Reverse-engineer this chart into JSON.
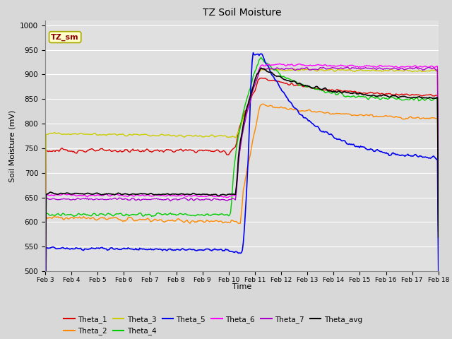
{
  "title": "TZ Soil Moisture",
  "xlabel": "Time",
  "ylabel": "Soil Moisture (mV)",
  "ylim": [
    500,
    1010
  ],
  "yticks": [
    500,
    550,
    600,
    650,
    700,
    750,
    800,
    850,
    900,
    950,
    1000
  ],
  "x_labels": [
    "Feb 3",
    "Feb 4",
    "Feb 5",
    "Feb 6",
    "Feb 7",
    "Feb 8",
    "Feb 9",
    "Feb 10",
    "Feb 11",
    "Feb 12",
    "Feb 13",
    "Feb 14",
    "Feb 15",
    "Feb 16",
    "Feb 17",
    "Feb 18"
  ],
  "background_color": "#d8d8d8",
  "plot_bg_color": "#e0e0e0",
  "tag_color": "#ffffcc",
  "tag_text_color": "#8B0000",
  "tag_edge_color": "#aaaa00",
  "colors": {
    "Theta_1": "#dd0000",
    "Theta_2": "#ff8800",
    "Theta_3": "#cccc00",
    "Theta_4": "#00cc00",
    "Theta_5": "#0000ee",
    "Theta_6": "#ff00ff",
    "Theta_7": "#aa00cc",
    "Theta_avg": "#000000"
  },
  "figsize": [
    6.4,
    4.8
  ],
  "dpi": 100
}
